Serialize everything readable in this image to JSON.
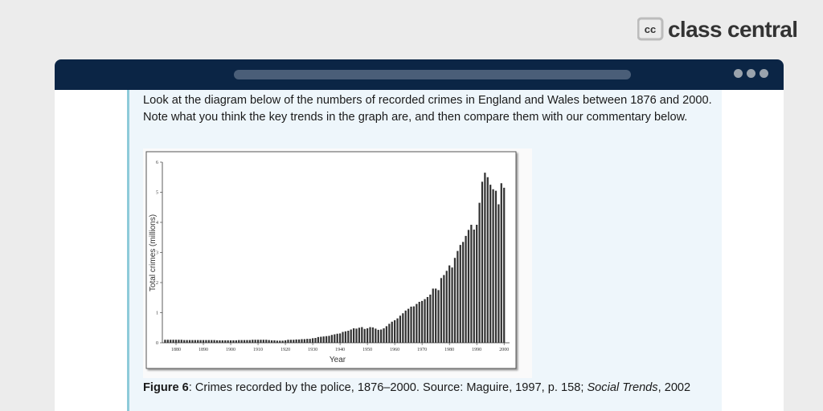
{
  "logo": {
    "text": "class central"
  },
  "content": {
    "paragraph": "Look at the diagram below of the numbers of recorded crimes in England and Wales between 1876 and 2000. Note what you think the key trends in the graph are, and then compare them with our commentary below.",
    "caption": {
      "label": "Figure 6",
      "text": ": Crimes recorded by the police, 1876–2000. Source: Maguire, 1997, p. 158; ",
      "source_title": "Social Trends",
      "source_year": ", 2002"
    }
  },
  "chart_data": {
    "type": "bar",
    "xlabel": "Year",
    "ylabel": "Total crimes (millions)",
    "color": "#333333",
    "x": [
      1876,
      1877,
      1878,
      1879,
      1880,
      1881,
      1882,
      1883,
      1884,
      1885,
      1886,
      1887,
      1888,
      1889,
      1890,
      1891,
      1892,
      1893,
      1894,
      1895,
      1896,
      1897,
      1898,
      1899,
      1900,
      1901,
      1902,
      1903,
      1904,
      1905,
      1906,
      1907,
      1908,
      1909,
      1910,
      1911,
      1912,
      1913,
      1914,
      1915,
      1916,
      1917,
      1918,
      1919,
      1920,
      1921,
      1922,
      1923,
      1924,
      1925,
      1926,
      1927,
      1928,
      1929,
      1930,
      1931,
      1932,
      1933,
      1934,
      1935,
      1936,
      1937,
      1938,
      1939,
      1940,
      1941,
      1942,
      1943,
      1944,
      1945,
      1946,
      1947,
      1948,
      1949,
      1950,
      1951,
      1952,
      1953,
      1954,
      1955,
      1956,
      1957,
      1958,
      1959,
      1960,
      1961,
      1962,
      1963,
      1964,
      1965,
      1966,
      1967,
      1968,
      1969,
      1970,
      1971,
      1972,
      1973,
      1974,
      1975,
      1976,
      1977,
      1978,
      1979,
      1980,
      1981,
      1982,
      1983,
      1984,
      1985,
      1986,
      1987,
      1988,
      1989,
      1990,
      1991,
      1992,
      1993,
      1994,
      1995,
      1996,
      1997,
      1998,
      1999,
      2000
    ],
    "values": [
      0.1,
      0.1,
      0.1,
      0.1,
      0.1,
      0.1,
      0.1,
      0.09,
      0.09,
      0.09,
      0.09,
      0.09,
      0.09,
      0.09,
      0.09,
      0.09,
      0.09,
      0.09,
      0.09,
      0.08,
      0.08,
      0.08,
      0.08,
      0.08,
      0.08,
      0.08,
      0.08,
      0.09,
      0.09,
      0.09,
      0.09,
      0.09,
      0.1,
      0.1,
      0.1,
      0.1,
      0.1,
      0.1,
      0.09,
      0.08,
      0.08,
      0.07,
      0.07,
      0.07,
      0.08,
      0.1,
      0.1,
      0.1,
      0.11,
      0.11,
      0.12,
      0.12,
      0.13,
      0.13,
      0.15,
      0.16,
      0.19,
      0.2,
      0.21,
      0.22,
      0.23,
      0.26,
      0.28,
      0.3,
      0.31,
      0.36,
      0.38,
      0.4,
      0.44,
      0.48,
      0.47,
      0.5,
      0.52,
      0.46,
      0.48,
      0.52,
      0.51,
      0.47,
      0.43,
      0.44,
      0.48,
      0.55,
      0.63,
      0.7,
      0.75,
      0.81,
      0.9,
      0.98,
      1.07,
      1.13,
      1.2,
      1.21,
      1.29,
      1.36,
      1.39,
      1.45,
      1.52,
      1.6,
      1.8,
      1.8,
      1.75,
      2.15,
      2.25,
      2.39,
      2.57,
      2.5,
      2.82,
      3.05,
      3.25,
      3.35,
      3.55,
      3.75,
      3.92,
      3.76,
      3.92,
      4.65,
      5.35,
      5.65,
      5.5,
      5.25,
      5.1,
      5.05,
      4.6,
      5.3,
      5.15
    ],
    "xlim": [
      1875,
      2002
    ],
    "xticks": [
      1880,
      1890,
      1900,
      1910,
      1920,
      1930,
      1940,
      1950,
      1960,
      1970,
      1980,
      1990,
      2000
    ],
    "ylim": [
      0,
      6
    ],
    "yticks": [
      0,
      1,
      2,
      3,
      4,
      5,
      6
    ]
  }
}
